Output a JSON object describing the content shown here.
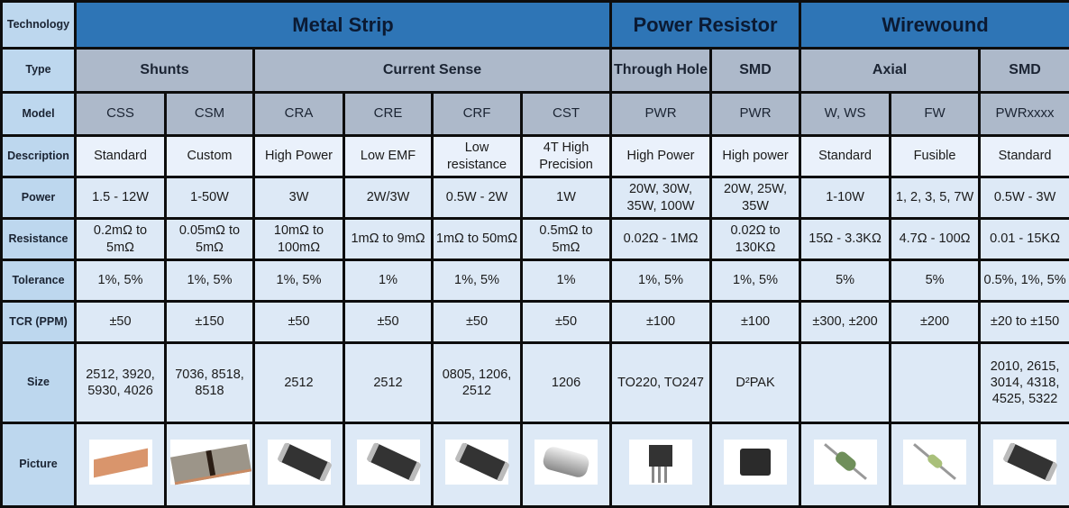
{
  "row_labels": {
    "technology": "Technology",
    "type": "Type",
    "model": "Model",
    "description": "Description",
    "power": "Power",
    "resistance": "Resistance",
    "tolerance": "Tolerance",
    "tcr": "TCR (PPM)",
    "size": "Size",
    "picture": "Picture"
  },
  "technologies": [
    {
      "label": "Metal Strip",
      "span": 6
    },
    {
      "label": "Power Resistor",
      "span": 2
    },
    {
      "label": "Wirewound",
      "span": 3
    }
  ],
  "types": [
    {
      "label": "Shunts",
      "span": 2
    },
    {
      "label": "Current Sense",
      "span": 4
    },
    {
      "label": "Through Hole",
      "span": 1
    },
    {
      "label": "SMD",
      "span": 1
    },
    {
      "label": "Axial",
      "span": 2
    },
    {
      "label": "SMD",
      "span": 1
    }
  ],
  "products": [
    {
      "model": "CSS",
      "description": "Standard",
      "power": "1.5 - 12W",
      "resistance": "0.2mΩ to 5mΩ",
      "tolerance": "1%, 5%",
      "tcr": "±50",
      "size": "2512, 3920, 5930, 4026",
      "picture": "copper-shunt"
    },
    {
      "model": "CSM",
      "description": "Custom",
      "power": "1-50W",
      "resistance": "0.05mΩ to 5mΩ",
      "tolerance": "1%, 5%",
      "tcr": "±150",
      "size": "7036, 8518, 8518",
      "picture": "metal-shunt"
    },
    {
      "model": "CRA",
      "description": "High Power",
      "power": "3W",
      "resistance": "10mΩ to 100mΩ",
      "tolerance": "1%, 5%",
      "tcr": "±50",
      "size": "2512",
      "picture": "smd-chip"
    },
    {
      "model": "CRE",
      "description": "Low EMF",
      "power": "2W/3W",
      "resistance": "1mΩ to 9mΩ",
      "tolerance": "1%",
      "tcr": "±50",
      "size": "2512",
      "picture": "smd-chip"
    },
    {
      "model": "CRF",
      "description": "Low resistance",
      "power": "0.5W - 2W",
      "resistance": "1mΩ to 50mΩ",
      "tolerance": "1%, 5%",
      "tcr": "±50",
      "size": "0805, 1206, 2512",
      "picture": "smd-chip"
    },
    {
      "model": "CST",
      "description": "4T High Precision",
      "power": "1W",
      "resistance": "0.5mΩ to 5mΩ",
      "tolerance": "1%",
      "tcr": "±50",
      "size": "1206",
      "picture": "four-terminal"
    },
    {
      "model": "PWR",
      "description": "High Power",
      "power": "20W, 30W, 35W, 100W",
      "resistance": "0.02Ω - 1MΩ",
      "tolerance": "1%, 5%",
      "tcr": "±100",
      "size": "TO220, TO247",
      "picture": "to-package"
    },
    {
      "model": "PWR",
      "description": "High power",
      "power": "20W, 25W, 35W",
      "resistance": "0.02Ω to 130KΩ",
      "tolerance": "1%, 5%",
      "tcr": "±100",
      "size": "D²PAK",
      "picture": "dpak"
    },
    {
      "model": "W, WS",
      "description": "Standard",
      "power": "1-10W",
      "resistance": "15Ω - 3.3KΩ",
      "tolerance": "5%",
      "tcr": "±300, ±200",
      "size": "",
      "picture": "axial-resistor"
    },
    {
      "model": "FW",
      "description": "Fusible",
      "power": "1, 2, 3, 5, 7W",
      "resistance": "4.7Ω - 100Ω",
      "tolerance": "5%",
      "tcr": "±200",
      "size": "",
      "picture": "fusible-resistor"
    },
    {
      "model": "PWRxxxx",
      "description": "Standard",
      "power": "0.5W - 3W",
      "resistance": "0.01 - 15KΩ",
      "tolerance": "0.5%, 1%, 5%",
      "tcr": "±20 to ±150",
      "size": "2010, 2615, 3014, 4318, 4525, 5322",
      "picture": "smd-chip"
    }
  ],
  "colors": {
    "technology_bg": "#2e75b6",
    "type_model_bg": "#adb9ca",
    "label_bg": "#bdd7ee",
    "cell_bg": "#dde9f6",
    "border": "#0d0d0d"
  }
}
